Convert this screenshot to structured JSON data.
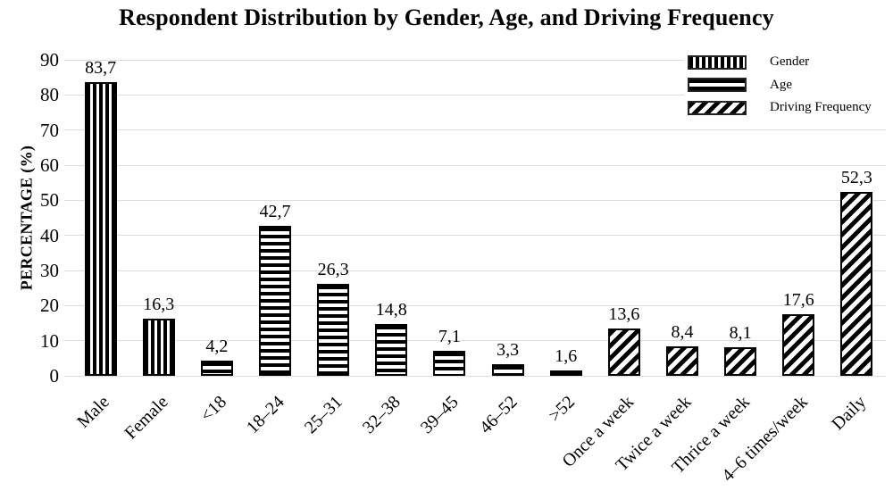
{
  "title": "Respondent Distribution by Gender, Age, and Driving Frequency",
  "chart_data": {
    "type": "bar",
    "title": "Respondent Distribution by Gender, Age, and Driving Frequency",
    "xlabel": "",
    "ylabel": "PERCENTAGE (%)",
    "ylim": [
      0,
      90
    ],
    "yticks": [
      0,
      10,
      20,
      30,
      40,
      50,
      60,
      70,
      80,
      90
    ],
    "grid": true,
    "decimal_separator": ",",
    "legend_position": "top-right",
    "legend": [
      {
        "label": "Gender",
        "pattern": "vertical-stripes"
      },
      {
        "label": "Age",
        "pattern": "horizontal-stripes"
      },
      {
        "label": "Driving Frequency",
        "pattern": "diagonal-stripes"
      }
    ],
    "bars": [
      {
        "category": "Male",
        "value": 83.7,
        "value_label": "83,7",
        "group": "Gender"
      },
      {
        "category": "Female",
        "value": 16.3,
        "value_label": "16,3",
        "group": "Gender"
      },
      {
        "category": "<18",
        "value": 4.2,
        "value_label": "4,2",
        "group": "Age"
      },
      {
        "category": "18–24",
        "value": 42.7,
        "value_label": "42,7",
        "group": "Age"
      },
      {
        "category": "25–31",
        "value": 26.3,
        "value_label": "26,3",
        "group": "Age"
      },
      {
        "category": "32–38",
        "value": 14.8,
        "value_label": "14,8",
        "group": "Age"
      },
      {
        "category": "39–45",
        "value": 7.1,
        "value_label": "7,1",
        "group": "Age"
      },
      {
        "category": "46–52",
        "value": 3.3,
        "value_label": "3,3",
        "group": "Age"
      },
      {
        "category": ">52",
        "value": 1.6,
        "value_label": "1,6",
        "group": "Age"
      },
      {
        "category": "Once a week",
        "value": 13.6,
        "value_label": "13,6",
        "group": "Driving Frequency"
      },
      {
        "category": "Twice a week",
        "value": 8.4,
        "value_label": "8,4",
        "group": "Driving Frequency"
      },
      {
        "category": "Thrice a week",
        "value": 8.1,
        "value_label": "8,1",
        "group": "Driving Frequency"
      },
      {
        "category": "4–6 times/week",
        "value": 17.6,
        "value_label": "17,6",
        "group": "Driving Frequency"
      },
      {
        "category": "Daily",
        "value": 52.3,
        "value_label": "52,3",
        "group": "Driving Frequency"
      }
    ]
  },
  "colors": {
    "background": "#ffffff",
    "bar_fill": "#ffffff",
    "bar_stroke": "#000000",
    "gridline": "#dcdcdc",
    "text": "#000000"
  }
}
